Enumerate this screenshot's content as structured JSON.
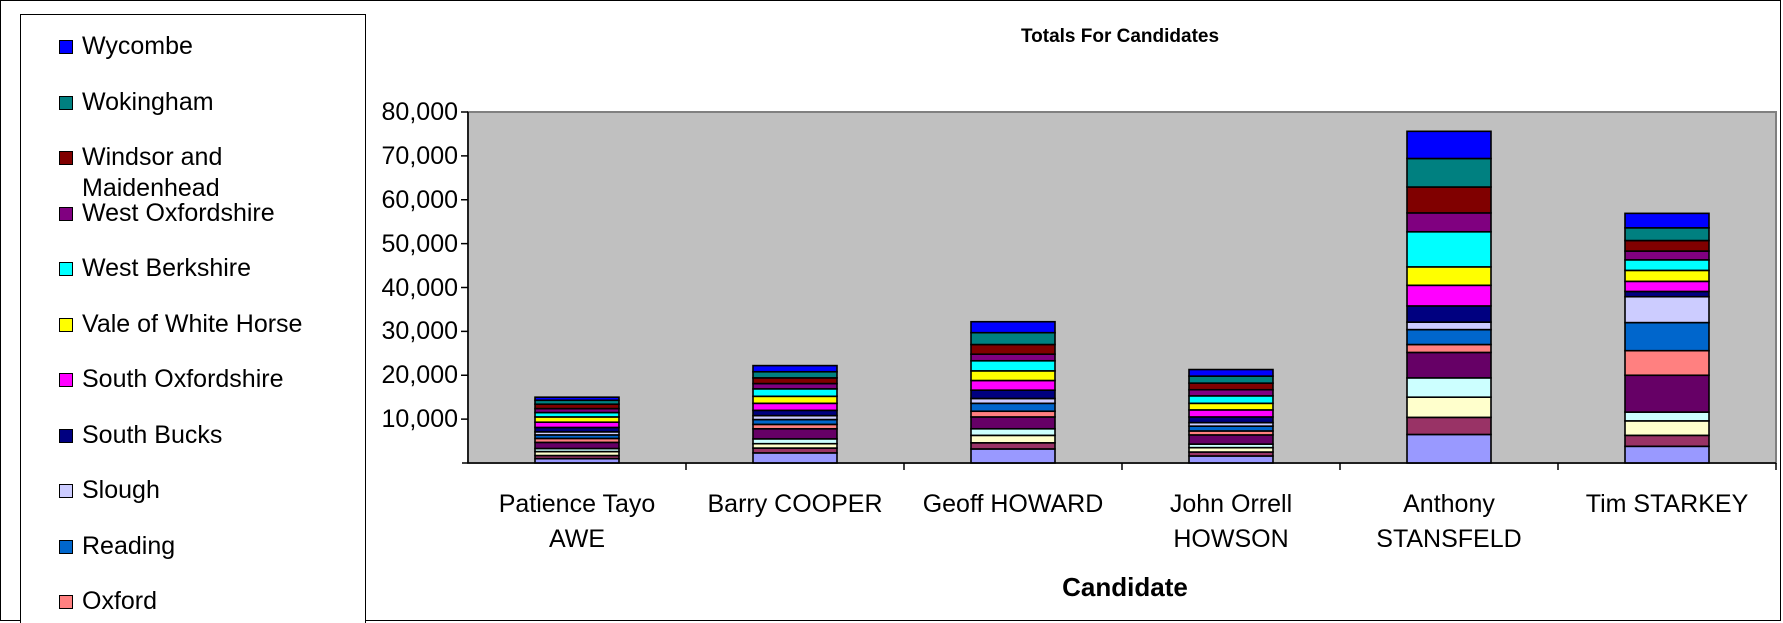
{
  "chart_data": {
    "type": "bar",
    "stacked": true,
    "title": "Totals For Candidates",
    "xlabel": "Candidate",
    "ylabel": "",
    "ylim": [
      0,
      80000
    ],
    "yticks": [
      10000,
      20000,
      30000,
      40000,
      50000,
      60000,
      70000,
      80000
    ],
    "ytick_labels": [
      "10,000",
      "20,000",
      "30,000",
      "40,000",
      "50,000",
      "60,000",
      "70,000",
      "80,000"
    ],
    "grid": false,
    "plot_background": "#c0c0c0",
    "legend_position": "left",
    "categories": [
      "Patience Tayo AWE",
      "Barry COOPER",
      "Geoff HOWARD",
      "John Orrell HOWSON",
      "Anthony STANSFELD",
      "Tim STARKEY"
    ],
    "series": [
      {
        "name": "",
        "color": "#9999ff",
        "values": [
          1000,
          2300,
          3200,
          1600,
          6500,
          3800
        ]
      },
      {
        "name": "",
        "color": "#993366",
        "values": [
          700,
          1100,
          1400,
          900,
          3900,
          2500
        ]
      },
      {
        "name": "",
        "color": "#ffffcc",
        "values": [
          900,
          1000,
          1700,
          1000,
          4600,
          3300
        ]
      },
      {
        "name": "",
        "color": "#ccffff",
        "values": [
          700,
          1100,
          1500,
          800,
          4400,
          2000
        ]
      },
      {
        "name": "",
        "color": "#660066",
        "values": [
          1400,
          2300,
          2700,
          2100,
          5800,
          8400
        ]
      },
      {
        "name": "Oxford",
        "color": "#ff8080",
        "values": [
          900,
          1000,
          1300,
          900,
          1800,
          5600
        ]
      },
      {
        "name": "Reading",
        "color": "#0066cc",
        "values": [
          800,
          1100,
          1800,
          1100,
          3400,
          6400
        ]
      },
      {
        "name": "Slough",
        "color": "#ccccff",
        "values": [
          700,
          900,
          1100,
          800,
          1700,
          5900
        ]
      },
      {
        "name": "South Bucks",
        "color": "#000080",
        "values": [
          1000,
          1200,
          1900,
          1300,
          3700,
          1200
        ]
      },
      {
        "name": "South Oxfordshire",
        "color": "#ff00ff",
        "values": [
          1200,
          1600,
          2200,
          1600,
          4700,
          2300
        ]
      },
      {
        "name": "Vale of White Horse",
        "color": "#ffff00",
        "values": [
          1200,
          1600,
          2200,
          1500,
          4200,
          2500
        ]
      },
      {
        "name": "West Berkshire",
        "color": "#00ffff",
        "values": [
          1000,
          1700,
          2300,
          1700,
          8000,
          2400
        ]
      },
      {
        "name": "West Oxfordshire",
        "color": "#800080",
        "values": [
          900,
          1200,
          1500,
          1400,
          4300,
          2000
        ]
      },
      {
        "name": "Windsor and Maidenhead",
        "color": "#800000",
        "values": [
          1000,
          1300,
          2200,
          1500,
          5900,
          2400
        ]
      },
      {
        "name": "Wokingham",
        "color": "#008080",
        "values": [
          900,
          1400,
          2700,
          1600,
          6500,
          2900
        ]
      },
      {
        "name": "Wycombe",
        "color": "#0000ff",
        "values": [
          700,
          1400,
          2500,
          1500,
          6200,
          3300
        ]
      }
    ]
  },
  "legend": {
    "items": [
      {
        "label": "Wycombe",
        "color": "#0000ff"
      },
      {
        "label": "Wokingham",
        "color": "#008080"
      },
      {
        "label": "Windsor and Maidenhead",
        "color": "#800000"
      },
      {
        "label": "West Oxfordshire",
        "color": "#800080"
      },
      {
        "label": "West Berkshire",
        "color": "#00ffff"
      },
      {
        "label": "Vale of White Horse",
        "color": "#ffff00"
      },
      {
        "label": "South Oxfordshire",
        "color": "#ff00ff"
      },
      {
        "label": "South Bucks",
        "color": "#000080"
      },
      {
        "label": "Slough",
        "color": "#ccccff"
      },
      {
        "label": "Reading",
        "color": "#0066cc"
      },
      {
        "label": "Oxford",
        "color": "#ff8080"
      }
    ]
  }
}
